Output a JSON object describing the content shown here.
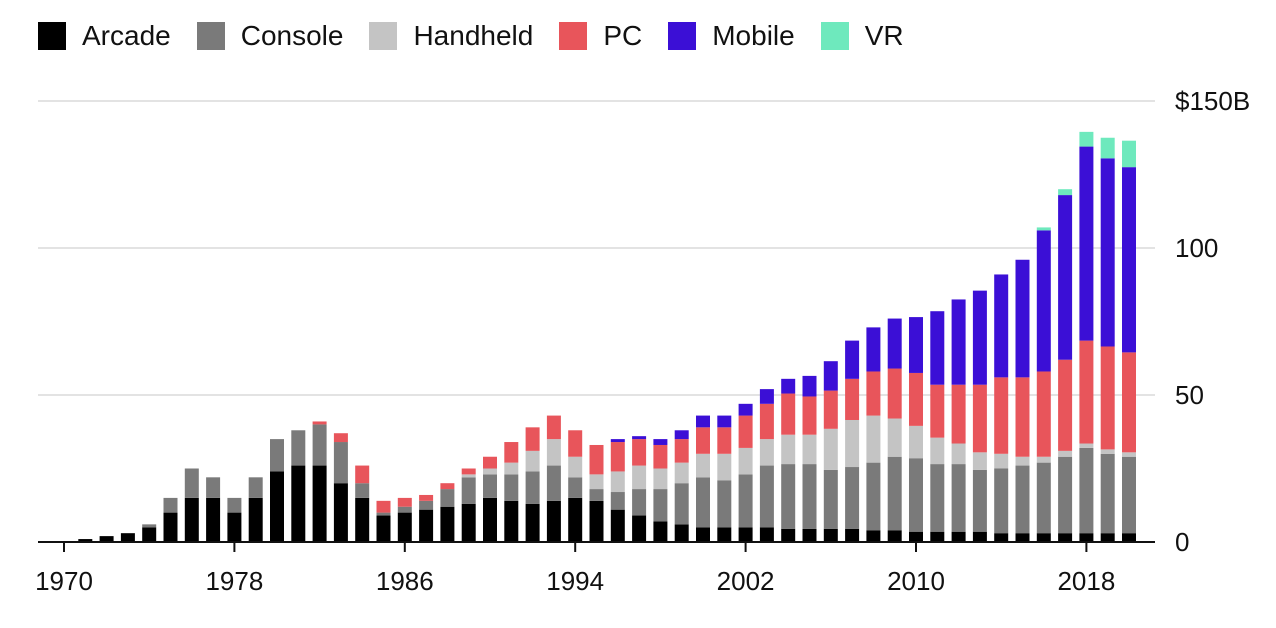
{
  "chart_data": {
    "type": "bar",
    "stacked": true,
    "title": "",
    "xlabel": "",
    "ylabel": "",
    "ylim": [
      0,
      150
    ],
    "y_ticks": [
      {
        "value": 150,
        "label": "$150B"
      },
      {
        "value": 100,
        "label": "100"
      },
      {
        "value": 50,
        "label": "50"
      },
      {
        "value": 0,
        "label": "0"
      }
    ],
    "x_ticks": [
      {
        "value": 1970,
        "label": "1970"
      },
      {
        "value": 1978,
        "label": "1978"
      },
      {
        "value": 1986,
        "label": "1986"
      },
      {
        "value": 1994,
        "label": "1994"
      },
      {
        "value": 2002,
        "label": "2002"
      },
      {
        "value": 2010,
        "label": "2010"
      },
      {
        "value": 2018,
        "label": "2018"
      }
    ],
    "grid": true,
    "legend_position": "top-left",
    "x": [
      1970,
      1971,
      1972,
      1973,
      1974,
      1975,
      1976,
      1977,
      1978,
      1979,
      1980,
      1981,
      1982,
      1983,
      1984,
      1985,
      1986,
      1987,
      1988,
      1989,
      1990,
      1991,
      1992,
      1993,
      1994,
      1995,
      1996,
      1997,
      1998,
      1999,
      2000,
      2001,
      2002,
      2003,
      2004,
      2005,
      2006,
      2007,
      2008,
      2009,
      2010,
      2011,
      2012,
      2013,
      2014,
      2015,
      2016,
      2017,
      2018,
      2019,
      2020
    ],
    "series": [
      {
        "name": "Arcade",
        "color": "#000000",
        "values": [
          0.3,
          1,
          2,
          3,
          5,
          10,
          15,
          15,
          10,
          15,
          24,
          26,
          26,
          20,
          15,
          9,
          10,
          11,
          12,
          13,
          15,
          14,
          13,
          14,
          15,
          14,
          11,
          9,
          7,
          6,
          5,
          5,
          5,
          5,
          4.5,
          4.5,
          4.5,
          4.5,
          4,
          4,
          3.5,
          3.5,
          3.5,
          3.5,
          3,
          3,
          3,
          3,
          3,
          3,
          3
        ]
      },
      {
        "name": "Console",
        "color": "#7a7a7a",
        "values": [
          0,
          0,
          0,
          0,
          1,
          5,
          10,
          7,
          5,
          7,
          11,
          12,
          14,
          14,
          5,
          1,
          2,
          3,
          6,
          9,
          8,
          9,
          11,
          12,
          7,
          4,
          6,
          9,
          11,
          14,
          17,
          16,
          18,
          21,
          22,
          22,
          20,
          21,
          23,
          25,
          25,
          23,
          23,
          21,
          22,
          23,
          24,
          26,
          29,
          27,
          26
        ]
      },
      {
        "name": "Handheld",
        "color": "#c4c4c4",
        "values": [
          0,
          0,
          0,
          0,
          0,
          0,
          0,
          0,
          0,
          0,
          0,
          0,
          0,
          0,
          0,
          0,
          0,
          0,
          0,
          1,
          2,
          4,
          7,
          9,
          7,
          5,
          7,
          8,
          7,
          7,
          8,
          9,
          9,
          9,
          10,
          10,
          14,
          16,
          16,
          13,
          11,
          9,
          7,
          6,
          5,
          3,
          2,
          2,
          1.5,
          1.5,
          1.5
        ]
      },
      {
        "name": "PC",
        "color": "#e8555b",
        "values": [
          0,
          0,
          0,
          0,
          0,
          0,
          0,
          0,
          0,
          0,
          0,
          0,
          1,
          3,
          6,
          4,
          3,
          2,
          2,
          2,
          4,
          7,
          8,
          8,
          9,
          10,
          10,
          9,
          8,
          8,
          9,
          9,
          11,
          12,
          14,
          13,
          13,
          14,
          15,
          17,
          18,
          18,
          20,
          23,
          26,
          27,
          29,
          31,
          35,
          35,
          34
        ]
      },
      {
        "name": "Mobile",
        "color": "#3b0fd6",
        "values": [
          0,
          0,
          0,
          0,
          0,
          0,
          0,
          0,
          0,
          0,
          0,
          0,
          0,
          0,
          0,
          0,
          0,
          0,
          0,
          0,
          0,
          0,
          0,
          0,
          0,
          0,
          1,
          1,
          2,
          3,
          4,
          4,
          4,
          5,
          5,
          7,
          10,
          13,
          15,
          17,
          19,
          25,
          29,
          32,
          35,
          40,
          48,
          56,
          66,
          64,
          63
        ]
      },
      {
        "name": "VR",
        "color": "#6ee9bd",
        "values": [
          0,
          0,
          0,
          0,
          0,
          0,
          0,
          0,
          0,
          0,
          0,
          0,
          0,
          0,
          0,
          0,
          0,
          0,
          0,
          0,
          0,
          0,
          0,
          0,
          0,
          0,
          0,
          0,
          0,
          0,
          0,
          0,
          0,
          0,
          0,
          0,
          0,
          0,
          0,
          0,
          0,
          0,
          0,
          0,
          0,
          0,
          1,
          2,
          5,
          7,
          9
        ]
      }
    ]
  }
}
